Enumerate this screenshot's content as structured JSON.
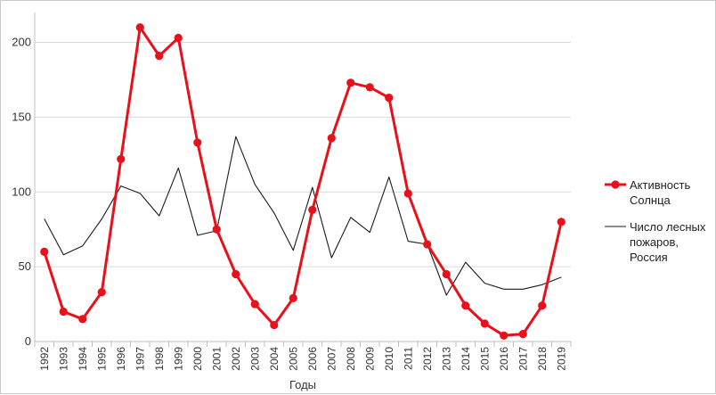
{
  "chart_data": {
    "type": "line",
    "title": "",
    "xlabel": "Годы",
    "ylabel": "",
    "ylim": [
      0,
      220
    ],
    "yticks": [
      0,
      50,
      100,
      150,
      200
    ],
    "grid": true,
    "legend_position": "right",
    "categories": [
      "1992",
      "1993",
      "1994",
      "1995",
      "1996",
      "1997",
      "1998",
      "1999",
      "2000",
      "2001",
      "2002",
      "2003",
      "2004",
      "2005",
      "2006",
      "2007",
      "2008",
      "2009",
      "2010",
      "2011",
      "2012",
      "2013",
      "2014",
      "2015",
      "2016",
      "2017",
      "2018",
      "2019"
    ],
    "series": [
      {
        "name": "Активность Солнца",
        "name_lines": [
          "Активность",
          "Солнца"
        ],
        "color": "#e8101a",
        "marker": "circle",
        "values": [
          60,
          20,
          15,
          33,
          122,
          210,
          191,
          203,
          133,
          75,
          45,
          25,
          11,
          29,
          88,
          136,
          173,
          170,
          163,
          99,
          65,
          45,
          24,
          12,
          4,
          5,
          24,
          80
        ]
      },
      {
        "name": "Число лесных пожаров, Россия",
        "name_lines": [
          "Число лесных",
          "пожаров,",
          "Россия"
        ],
        "color": "#1a1a1a",
        "marker": "none",
        "values": [
          82,
          58,
          64,
          82,
          104,
          99,
          84,
          116,
          71,
          74,
          137,
          105,
          86,
          61,
          103,
          56,
          83,
          73,
          110,
          67,
          65,
          31,
          53,
          39,
          35,
          35,
          38,
          43
        ]
      }
    ]
  }
}
